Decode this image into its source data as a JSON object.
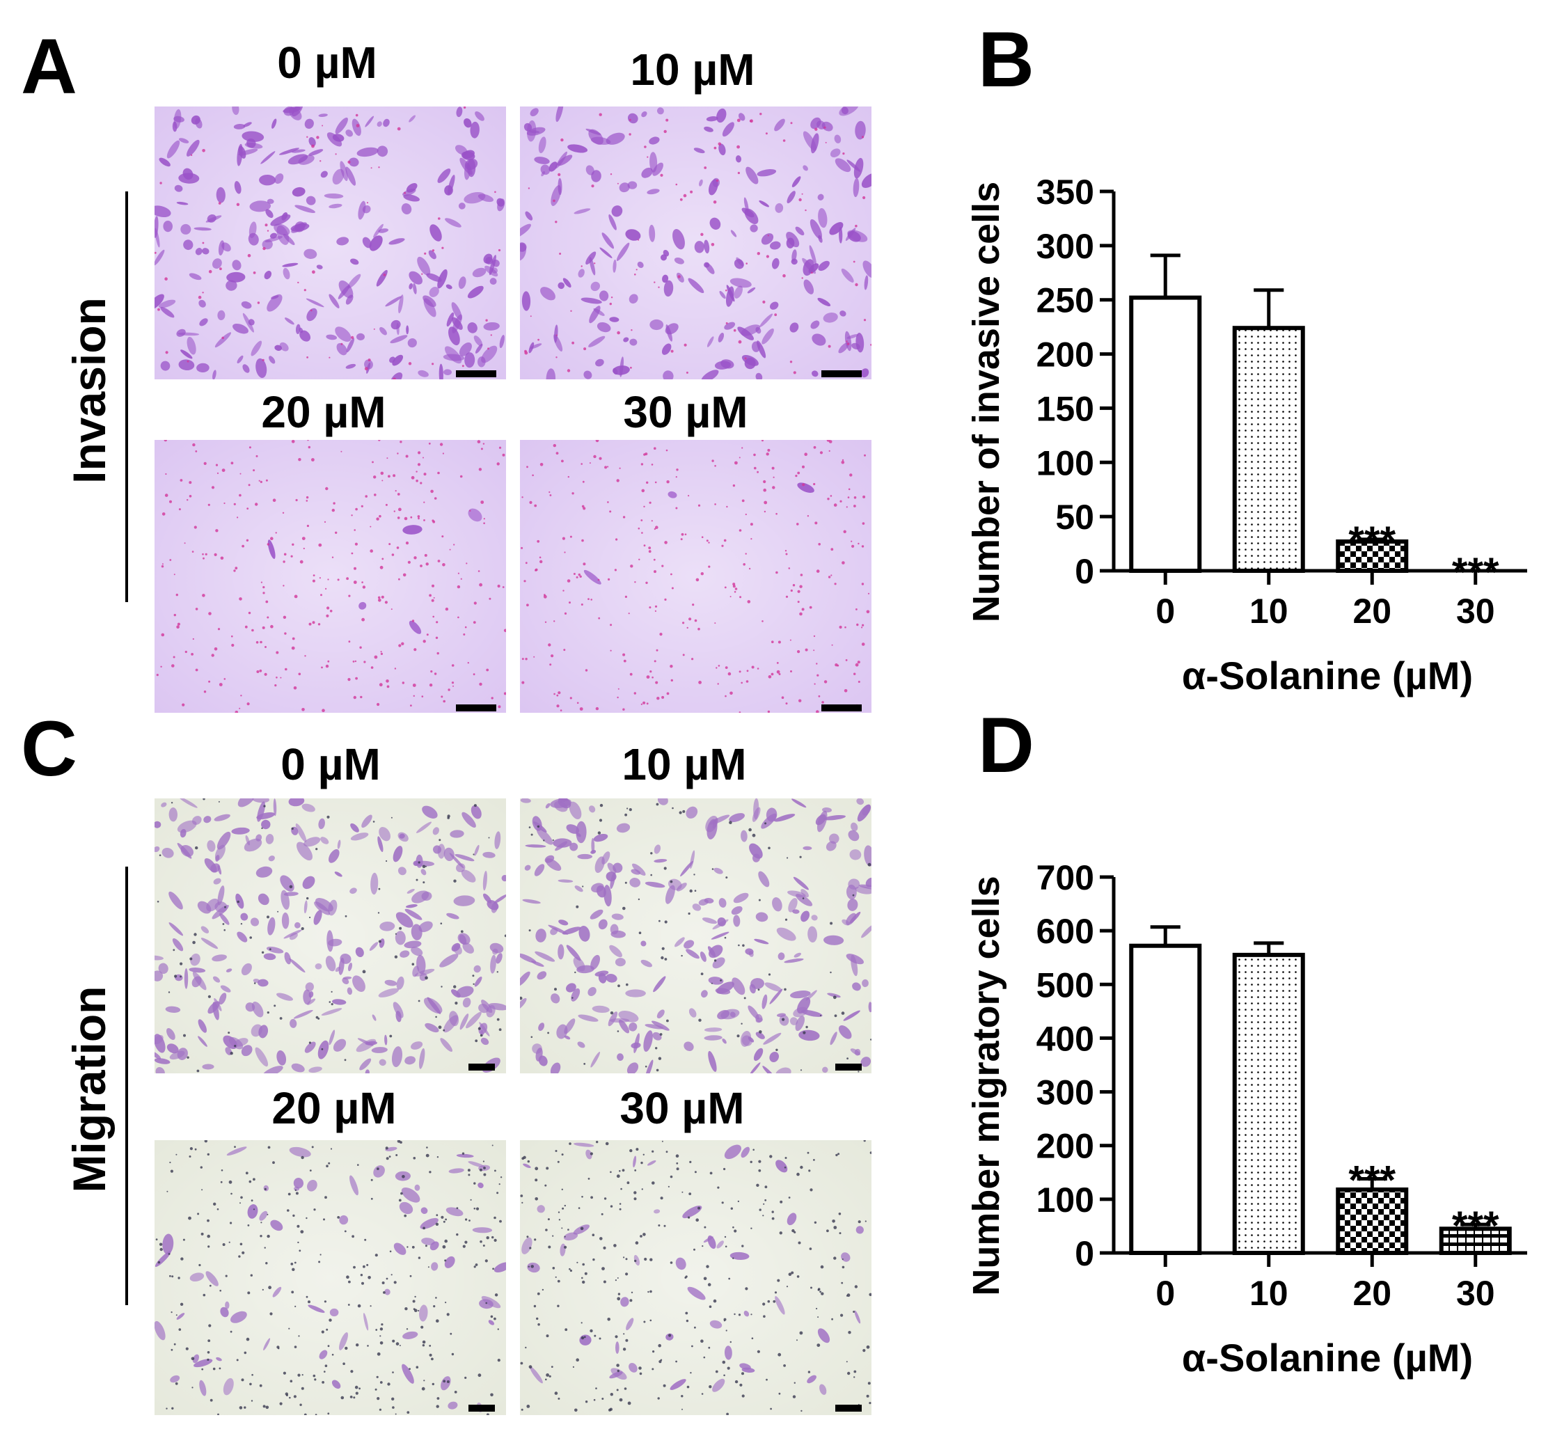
{
  "panels": {
    "A": {
      "letter": "A",
      "group_label": "Invasion",
      "images": [
        {
          "label": "0 µM",
          "density": 0.9,
          "dots": 0.2
        },
        {
          "label": "10 µM",
          "density": 0.75,
          "dots": 0.3
        },
        {
          "label": "20 µM",
          "density": 0.02,
          "dots": 1.0
        },
        {
          "label": "30 µM",
          "density": 0.01,
          "dots": 1.0
        }
      ],
      "colors": {
        "bg": "#dcc6f2",
        "cell": "#9a52c8",
        "dot": "#d2369a"
      }
    },
    "C": {
      "letter": "C",
      "group_label": "Migration",
      "images": [
        {
          "label": "0 µM",
          "density": 1.0,
          "dots": 0.3
        },
        {
          "label": "10 µM",
          "density": 0.95,
          "dots": 0.3
        },
        {
          "label": "20 µM",
          "density": 0.25,
          "dots": 1.0
        },
        {
          "label": "30 µM",
          "density": 0.18,
          "dots": 1.0
        }
      ],
      "colors": {
        "bg": "#e6e9dc",
        "cell": "#a070c4",
        "dot": "#3a3a50"
      }
    },
    "B": {
      "letter": "B"
    },
    "D": {
      "letter": "D"
    }
  },
  "chart_data": [
    {
      "type": "bar",
      "panel": "B",
      "categories": [
        "0",
        "10",
        "20",
        "30"
      ],
      "values": [
        252,
        224,
        27,
        0
      ],
      "errors": [
        39,
        35,
        2,
        0
      ],
      "significance": [
        "",
        "",
        "***",
        "***"
      ],
      "patterns": [
        "solid-white",
        "dots",
        "checker",
        "none"
      ],
      "xlabel": "α-Solanine (µM)",
      "ylabel": "Number of invasive cells",
      "ylim": [
        0,
        350
      ],
      "yticks": [
        0,
        50,
        100,
        150,
        200,
        250,
        300,
        350
      ],
      "grid": false
    },
    {
      "type": "bar",
      "panel": "D",
      "categories": [
        "0",
        "10",
        "20",
        "30"
      ],
      "values": [
        572,
        555,
        118,
        45
      ],
      "errors": [
        35,
        22,
        20,
        8
      ],
      "significance": [
        "",
        "",
        "***",
        "***"
      ],
      "patterns": [
        "solid-white",
        "dots",
        "checker",
        "stripes"
      ],
      "xlabel": "α-Solanine (µM)",
      "ylabel": "Number migratory cells",
      "ylim": [
        0,
        700
      ],
      "yticks": [
        0,
        100,
        200,
        300,
        400,
        500,
        600,
        700
      ],
      "grid": false
    }
  ]
}
